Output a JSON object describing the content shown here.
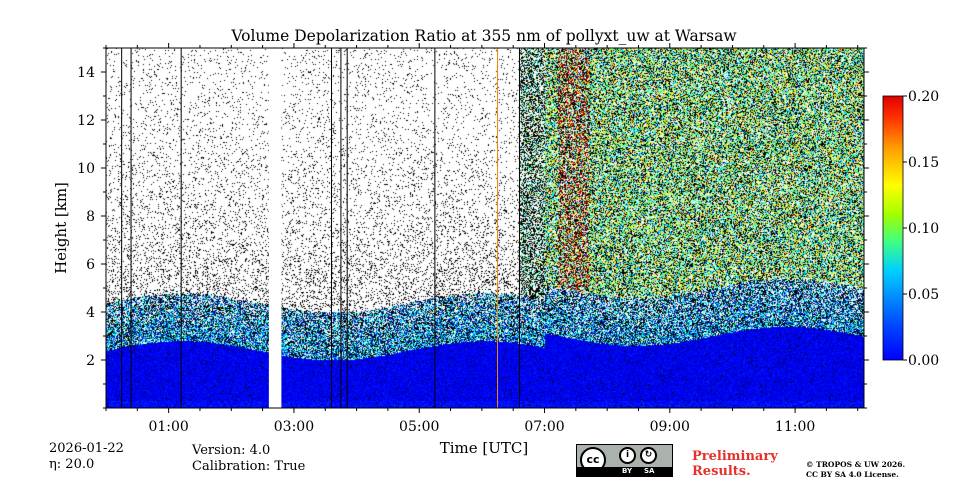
{
  "chart_data": {
    "type": "heatmap",
    "title": "Volume Depolarization Ratio at 355 nm of pollyxt_uw at Warsaw",
    "xlabel": "Time [UTC]",
    "ylabel": "Height [km]",
    "xlim_hours": [
      0.0,
      12.1
    ],
    "ylim_km": [
      0.0,
      15.0
    ],
    "x_ticks": [
      {
        "value": 1,
        "label": "01:00"
      },
      {
        "value": 3,
        "label": "03:00"
      },
      {
        "value": 5,
        "label": "05:00"
      },
      {
        "value": 7,
        "label": "07:00"
      },
      {
        "value": 9,
        "label": "09:00"
      },
      {
        "value": 11,
        "label": "11:00"
      }
    ],
    "y_ticks": [
      {
        "value": 2,
        "label": "2"
      },
      {
        "value": 4,
        "label": "4"
      },
      {
        "value": 6,
        "label": "6"
      },
      {
        "value": 8,
        "label": "8"
      },
      {
        "value": 10,
        "label": "10"
      },
      {
        "value": 12,
        "label": "12"
      },
      {
        "value": 14,
        "label": "14"
      }
    ],
    "colorbar": {
      "min": 0.0,
      "max": 0.2,
      "ticks": [
        {
          "value": 0.0,
          "label": "0.00"
        },
        {
          "value": 0.05,
          "label": "0.05"
        },
        {
          "value": 0.1,
          "label": "0.10"
        },
        {
          "value": 0.15,
          "label": "0.15"
        },
        {
          "value": 0.2,
          "label": "0.20"
        }
      ],
      "colormap": "jet"
    },
    "data_gaps_hours": [
      [
        2.6,
        2.8
      ]
    ],
    "profile_lines_hours": [
      0.25,
      0.4,
      1.2,
      3.6,
      3.75,
      3.85,
      5.25,
      6.6
    ],
    "highlight_line": {
      "time_hours": 6.25,
      "color": "#f08a00"
    },
    "regions": [
      {
        "name": "boundary-layer",
        "t_start": 0.0,
        "t_end": 12.1,
        "top_km": 3.0,
        "depol": 0.02
      },
      {
        "name": "noise-clear",
        "t_start": 0.0,
        "t_end": 6.6,
        "depol": "noise"
      },
      {
        "name": "noise-cloudy",
        "t_start": 7.0,
        "t_end": 12.1,
        "depol": "mixed 0.0-0.2"
      }
    ]
  },
  "footer": {
    "date": "2026-01-22",
    "eta": "η: 20.0",
    "version": "Version: 4.0",
    "calibration": "Calibration: True",
    "preliminary_line1": "Preliminary",
    "preliminary_line2": "Results.",
    "copyright_line1": "© TROPOS & UW 2026.",
    "copyright_line2": "CC BY SA 4.0 License.",
    "license_badge": {
      "cc": "cc",
      "by": "BY",
      "sa": "SA"
    }
  }
}
